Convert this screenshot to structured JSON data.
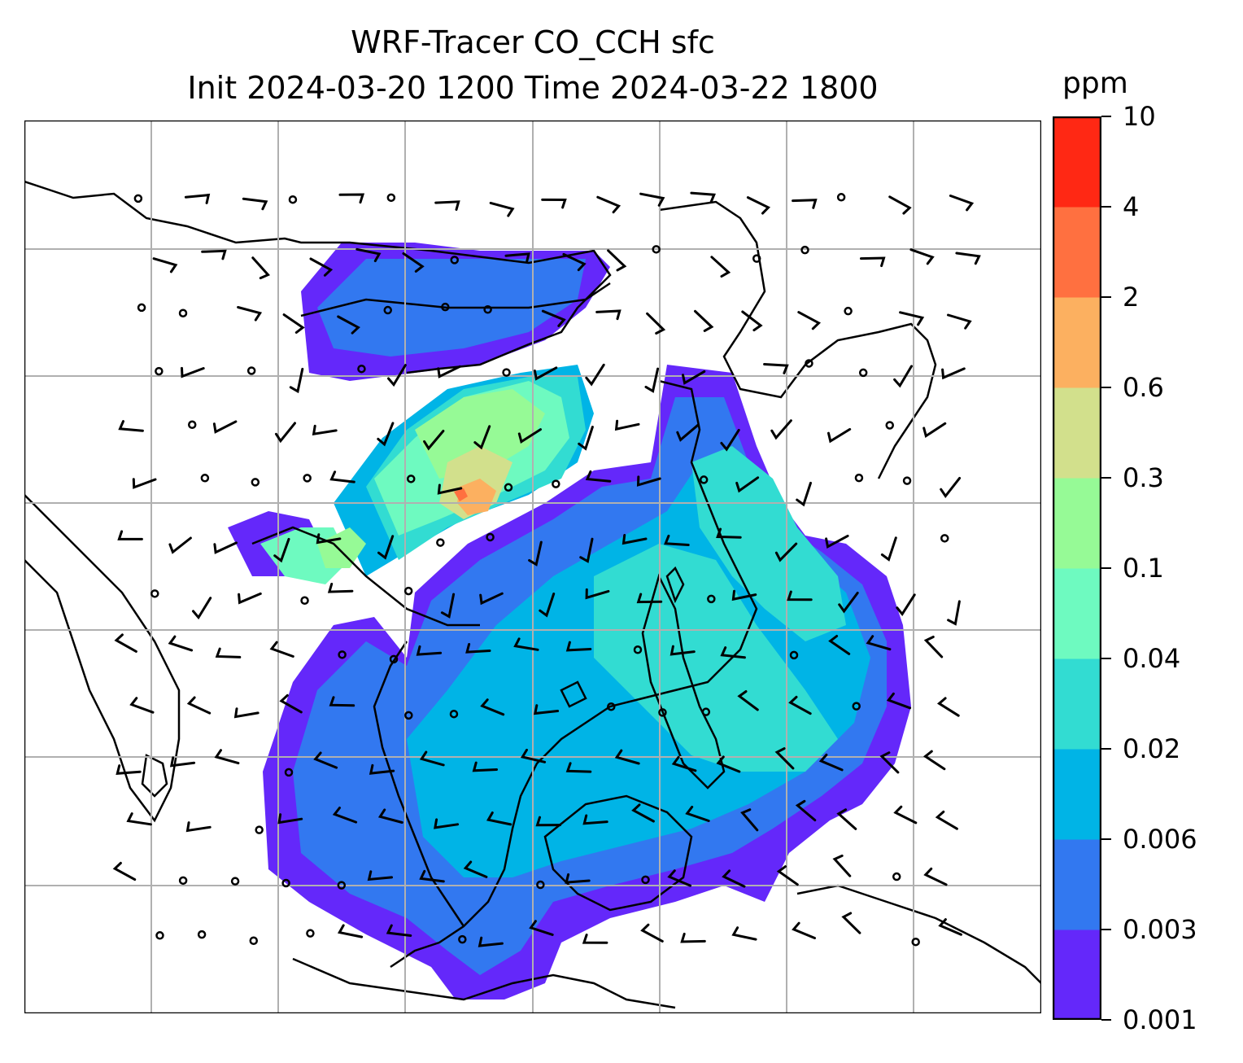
{
  "title": {
    "line1": "WRF-Tracer CO_CCH sfc",
    "line2": "Init 2024-03-20 1200 Time 2024-03-22 1800"
  },
  "colorbar": {
    "unit": "ppm",
    "levels": [
      "0.001",
      "0.003",
      "0.006",
      "0.02",
      "0.04",
      "0.1",
      "0.3",
      "0.6",
      "2",
      "4",
      "10"
    ],
    "colors": [
      "#6428fa",
      "#3278f0",
      "#00b4e6",
      "#32dcd2",
      "#6efac0",
      "#96fa96",
      "#d2e08c",
      "#fcb060",
      "#ff7040",
      "#ff2814"
    ]
  },
  "map": {
    "gridline_color": "#b0b0b0",
    "coastline_color": "#000000",
    "wind_barb_color": "#000000"
  }
}
